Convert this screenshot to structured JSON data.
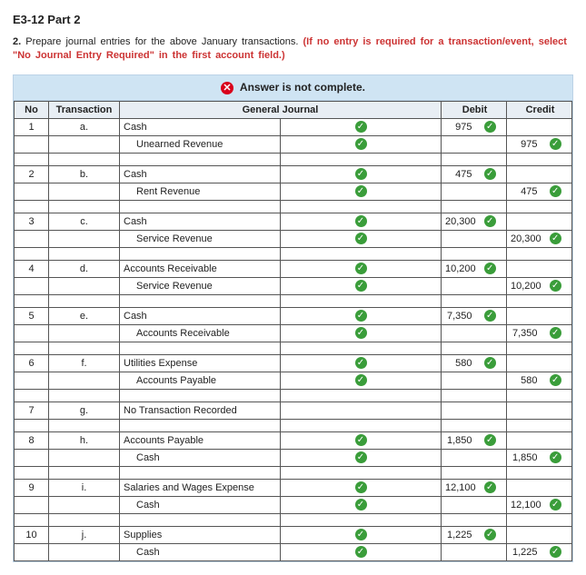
{
  "title": "E3-12 Part 2",
  "instruction_num": "2.",
  "instruction_text": "Prepare journal entries for the above January transactions.",
  "instruction_red": "(If no entry is required for a transaction/event, select \"No Journal Entry Required\" in the first account field.)",
  "banner": "Answer is not complete.",
  "columns": {
    "no": "No",
    "txn": "Transaction",
    "gj": "General Journal",
    "debit": "Debit",
    "credit": "Credit"
  },
  "check_glyph": "✓",
  "x_glyph": "✕",
  "entries": [
    {
      "no": "1",
      "txn": "a.",
      "lines": [
        {
          "acct": "Cash",
          "chk": true,
          "debit": "975",
          "credit": ""
        },
        {
          "acct": "Unearned Revenue",
          "chk": true,
          "debit": "",
          "credit": "975",
          "indent": true
        }
      ]
    },
    {
      "no": "2",
      "txn": "b.",
      "lines": [
        {
          "acct": "Cash",
          "chk": true,
          "debit": "475",
          "credit": ""
        },
        {
          "acct": "Rent Revenue",
          "chk": true,
          "debit": "",
          "credit": "475",
          "indent": true
        }
      ]
    },
    {
      "no": "3",
      "txn": "c.",
      "lines": [
        {
          "acct": "Cash",
          "chk": true,
          "debit": "20,300",
          "credit": ""
        },
        {
          "acct": "Service Revenue",
          "chk": true,
          "debit": "",
          "credit": "20,300",
          "indent": true
        }
      ]
    },
    {
      "no": "4",
      "txn": "d.",
      "lines": [
        {
          "acct": "Accounts Receivable",
          "chk": true,
          "debit": "10,200",
          "credit": ""
        },
        {
          "acct": "Service Revenue",
          "chk": true,
          "debit": "",
          "credit": "10,200",
          "indent": true
        }
      ]
    },
    {
      "no": "5",
      "txn": "e.",
      "lines": [
        {
          "acct": "Cash",
          "chk": true,
          "debit": "7,350",
          "credit": ""
        },
        {
          "acct": "Accounts Receivable",
          "chk": true,
          "debit": "",
          "credit": "7,350",
          "indent": true
        }
      ]
    },
    {
      "no": "6",
      "txn": "f.",
      "lines": [
        {
          "acct": "Utilities Expense",
          "chk": true,
          "debit": "580",
          "credit": ""
        },
        {
          "acct": "Accounts Payable",
          "chk": true,
          "debit": "",
          "credit": "580",
          "indent": true
        }
      ]
    },
    {
      "no": "7",
      "txn": "g.",
      "lines": [
        {
          "acct": "No Transaction Recorded",
          "chk": false,
          "debit": "",
          "credit": ""
        }
      ]
    },
    {
      "no": "8",
      "txn": "h.",
      "lines": [
        {
          "acct": "Accounts Payable",
          "chk": true,
          "debit": "1,850",
          "credit": ""
        },
        {
          "acct": "Cash",
          "chk": true,
          "debit": "",
          "credit": "1,850",
          "indent": true
        }
      ]
    },
    {
      "no": "9",
      "txn": "i.",
      "lines": [
        {
          "acct": "Salaries and Wages Expense",
          "chk": true,
          "debit": "12,100",
          "credit": ""
        },
        {
          "acct": "Cash",
          "chk": true,
          "debit": "",
          "credit": "12,100",
          "indent": true
        }
      ]
    },
    {
      "no": "10",
      "txn": "j.",
      "lines": [
        {
          "acct": "Supplies",
          "chk": true,
          "debit": "1,225",
          "credit": ""
        },
        {
          "acct": "Cash",
          "chk": true,
          "debit": "",
          "credit": "1,225",
          "indent": true
        }
      ]
    }
  ]
}
